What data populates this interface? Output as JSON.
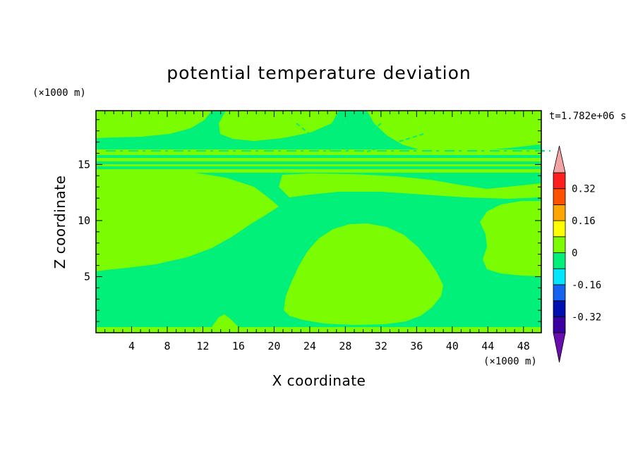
{
  "chart_data": {
    "type": "heatmap",
    "title": "potential temperature deviation",
    "xlabel": "X coordinate",
    "ylabel": "Z coordinate",
    "x_unit": "(×1000 m)",
    "y_unit": "(×1000 m)",
    "time_label": "t=1.782e+06 s",
    "xlim": [
      0,
      50
    ],
    "ylim": [
      0,
      19.8
    ],
    "x_ticks": [
      4,
      8,
      12,
      16,
      20,
      24,
      28,
      32,
      36,
      40,
      44,
      48
    ],
    "y_ticks": [
      5,
      10,
      15
    ],
    "colorbar": {
      "levels": [
        -0.4,
        -0.32,
        -0.24,
        -0.16,
        -0.08,
        0,
        0.08,
        0.16,
        0.24,
        0.32,
        0.4
      ],
      "labels": [
        "-0.32",
        "-0.16",
        "0",
        "0.16",
        "0.32"
      ],
      "label_values": [
        -0.32,
        -0.16,
        0,
        0.16,
        0.32
      ],
      "colors": [
        "#6a0dad",
        "#3a00a0",
        "#000fb0",
        "#1464f0",
        "#00e6ff",
        "#00f07a",
        "#7cfc00",
        "#ffff00",
        "#ffa500",
        "#ff5000",
        "#ff1e1e",
        "#f4a3a3"
      ],
      "extend": "both"
    },
    "fields": {
      "background_color": "#00f07a",
      "positive_color": "#7cfc00"
    }
  }
}
